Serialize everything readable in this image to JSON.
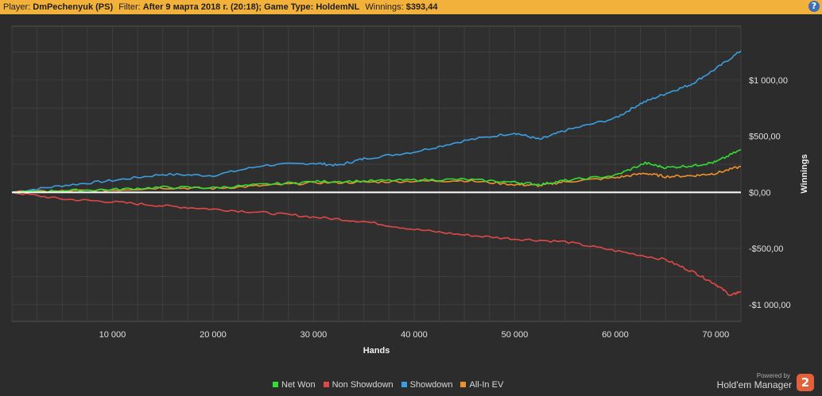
{
  "header": {
    "player_label": "Player:",
    "player_value": "DmPechenyuk (PS)",
    "filter_label": "Filter:",
    "filter_value": "After 9 марта 2018 г. (20:18); Game Type: HoldemNL",
    "winnings_label": "Winnings:",
    "winnings_value": "$393,44",
    "help_glyph": "?"
  },
  "footer": {
    "powered_by": "Powered by",
    "brand": "Hold'em Manager",
    "logo_glyph": "2"
  },
  "chart_data": {
    "type": "line",
    "xlabel": "Hands",
    "ylabel": "Winnings",
    "xlim": [
      0,
      72500
    ],
    "ylim": [
      -1150,
      1480
    ],
    "x_ticks": [
      10000,
      20000,
      30000,
      40000,
      50000,
      60000,
      70000
    ],
    "x_tick_labels": [
      "10 000",
      "20 000",
      "30 000",
      "40 000",
      "50 000",
      "60 000",
      "70 000"
    ],
    "y_ticks": [
      1000,
      500,
      0,
      -500,
      -1000
    ],
    "y_tick_labels": [
      "$1 000,00",
      "$500,00",
      "$0,00",
      "-$500,00",
      "-$1 000,00"
    ],
    "grid": true,
    "zero_line": true,
    "legend_position": "bottom-center",
    "series": [
      {
        "name": "Net Won",
        "color": "#33dd33",
        "x": [
          0,
          5000,
          10000,
          15000,
          20000,
          25000,
          30000,
          35000,
          40000,
          45000,
          50000,
          52500,
          55000,
          60000,
          63000,
          65000,
          68000,
          70000,
          72500
        ],
        "y": [
          0,
          15,
          25,
          45,
          40,
          70,
          95,
          100,
          110,
          115,
          90,
          70,
          105,
          150,
          260,
          220,
          240,
          270,
          380
        ]
      },
      {
        "name": "Non Showdown",
        "color": "#e04848",
        "x": [
          0,
          5000,
          10000,
          15000,
          20000,
          25000,
          30000,
          35000,
          40000,
          45000,
          50000,
          55000,
          60000,
          65000,
          68000,
          70000,
          71500,
          72500
        ],
        "y": [
          0,
          -60,
          -85,
          -120,
          -150,
          -180,
          -220,
          -260,
          -330,
          -380,
          -415,
          -440,
          -520,
          -600,
          -720,
          -820,
          -920,
          -880
        ]
      },
      {
        "name": "Showdown",
        "color": "#3a9ee0",
        "x": [
          0,
          5000,
          10000,
          15000,
          20000,
          25000,
          30000,
          32500,
          35000,
          40000,
          45000,
          50000,
          52500,
          55000,
          60000,
          62500,
          65000,
          67500,
          70000,
          72500
        ],
        "y": [
          0,
          60,
          105,
          160,
          150,
          240,
          260,
          240,
          300,
          360,
          460,
          530,
          470,
          550,
          660,
          790,
          880,
          960,
          1100,
          1260
        ]
      },
      {
        "name": "All-In EV",
        "color": "#f0902a",
        "x": [
          0,
          5000,
          10000,
          15000,
          20000,
          25000,
          30000,
          35000,
          40000,
          45000,
          50000,
          52500,
          55000,
          60000,
          63000,
          65000,
          68000,
          70000,
          72500
        ],
        "y": [
          0,
          10,
          20,
          40,
          35,
          60,
          85,
          90,
          100,
          105,
          70,
          60,
          95,
          130,
          170,
          140,
          150,
          170,
          230
        ]
      }
    ]
  }
}
